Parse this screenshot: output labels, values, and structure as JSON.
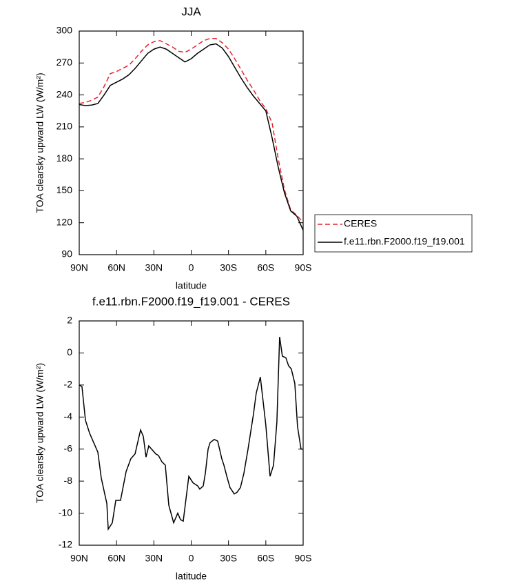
{
  "chart_data": [
    {
      "type": "line",
      "title": "JJA",
      "xlabel": "latitude",
      "ylabel": "TOA clearsky upward LW (W/m²)",
      "x": [
        90,
        85,
        80,
        75,
        70,
        65,
        60,
        55,
        50,
        45,
        40,
        35,
        30,
        25,
        20,
        15,
        10,
        5,
        0,
        -5,
        -10,
        -15,
        -20,
        -25,
        -30,
        -35,
        -40,
        -45,
        -50,
        -55,
        -60,
        -65,
        -70,
        -75,
        -80,
        -85,
        -90
      ],
      "series": [
        {
          "name": "CERES",
          "color": "#e8212a",
          "dash": true,
          "values": [
            232,
            233,
            235,
            238,
            248,
            260,
            262,
            265,
            268,
            274,
            281,
            287,
            290,
            291,
            288,
            285,
            281,
            280,
            283,
            287,
            291,
            293,
            293,
            289,
            283,
            274,
            264,
            254,
            245,
            235,
            227,
            214,
            180,
            151,
            132,
            127,
            120
          ]
        },
        {
          "name": "f.e11.rbn.F2000.f19_f19.001",
          "color": "#000000",
          "dash": false,
          "values": [
            231,
            230,
            230.5,
            232,
            240,
            249,
            252,
            255,
            259,
            265,
            272,
            279,
            283,
            285,
            283,
            279,
            275,
            271,
            274,
            279,
            283,
            287,
            288,
            284,
            276,
            266,
            256,
            247,
            239,
            232,
            225,
            200,
            172,
            148,
            131,
            126,
            113
          ]
        }
      ],
      "xlim": [
        90,
        -90
      ],
      "xticks": [
        {
          "value": 90,
          "label": "90N"
        },
        {
          "value": 60,
          "label": "60N"
        },
        {
          "value": 30,
          "label": "30N"
        },
        0,
        {
          "value": -30,
          "label": "30S"
        },
        {
          "value": -60,
          "label": "60S"
        },
        {
          "value": -90,
          "label": "90S"
        }
      ],
      "ylim": [
        90,
        300
      ],
      "yticks": [
        90,
        120,
        150,
        180,
        210,
        240,
        270,
        300
      ],
      "legend": "right"
    },
    {
      "type": "line",
      "title": "f.e11.rbn.F2000.f19_f19.001 - CERES",
      "xlabel": "latitude",
      "ylabel": "TOA clearsky upward LW (W/m²)",
      "x": [
        90,
        87.8,
        85,
        81.7,
        75,
        72.3,
        69.5,
        67.8,
        66.7,
        63.4,
        60.6,
        56.8,
        52.3,
        48.5,
        45.1,
        40.7,
        38.5,
        36.3,
        34.1,
        28.5,
        26.3,
        23.5,
        20.8,
        18,
        14.1,
        10.8,
        8.6,
        6.4,
        1.9,
        -1.4,
        -5.3,
        -6.9,
        -9.7,
        -11.4,
        -13.6,
        -15.2,
        -18.5,
        -21.3,
        -24.6,
        -26.3,
        -29,
        -31.2,
        -34.6,
        -36.8,
        -39.6,
        -42.4,
        -45.7,
        -50.1,
        -52.3,
        -55.6,
        -60,
        -63.4,
        -66.2,
        -68.9,
        -71.1,
        -73.3,
        -76.1,
        -78.3,
        -80.5,
        -83.3,
        -85.5,
        -88.3,
        -90
      ],
      "series": [
        {
          "color": "#000000",
          "values": [
            -2,
            -2.1,
            -4.2,
            -5,
            -6.2,
            -7.8,
            -8.8,
            -9.4,
            -11,
            -10.6,
            -9.2,
            -9.2,
            -7.4,
            -6.6,
            -6.3,
            -4.8,
            -5.2,
            -6.5,
            -5.8,
            -6.3,
            -6.4,
            -6.8,
            -7,
            -9.5,
            -10.6,
            -10,
            -10.4,
            -10.5,
            -7.7,
            -8.1,
            -8.3,
            -8.5,
            -8.3,
            -7.5,
            -6,
            -5.6,
            -5.4,
            -5.5,
            -6.6,
            -7,
            -7.8,
            -8.4,
            -8.8,
            -8.7,
            -8.4,
            -7.5,
            -6,
            -3.8,
            -2.5,
            -1.5,
            -4.5,
            -7.7,
            -7,
            -4.3,
            1,
            -0.2,
            -0.3,
            -0.8,
            -1,
            -1.9,
            -4.6,
            -6,
            -6
          ]
        }
      ],
      "xlim": [
        90,
        -90
      ],
      "xticks": [
        {
          "value": 90,
          "label": "90N"
        },
        {
          "value": 60,
          "label": "60N"
        },
        {
          "value": 30,
          "label": "30N"
        },
        0,
        {
          "value": -30,
          "label": "30S"
        },
        {
          "value": -60,
          "label": "60S"
        },
        {
          "value": -90,
          "label": "90S"
        }
      ],
      "ylim": [
        -12,
        2
      ],
      "yticks": [
        -12,
        -10,
        -8,
        -6,
        -4,
        -2,
        0,
        2
      ]
    }
  ]
}
